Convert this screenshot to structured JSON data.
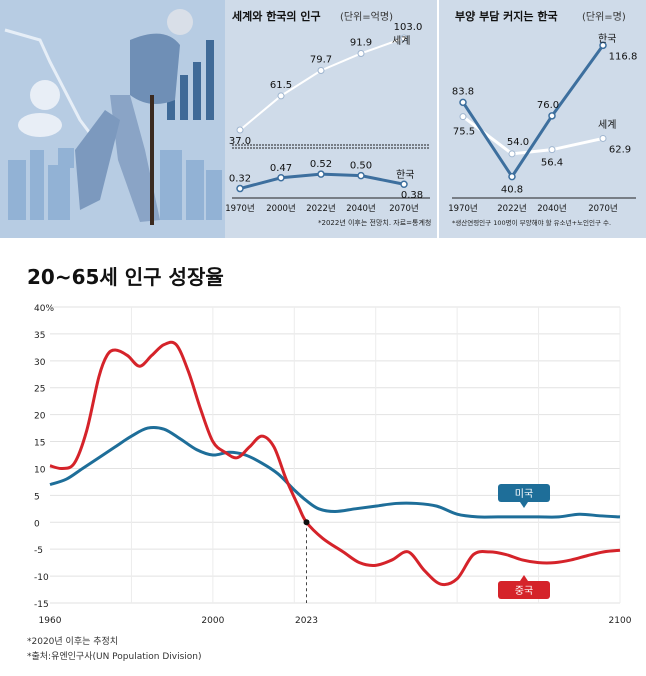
{
  "chart_data": [
    {
      "type": "line",
      "title": "세계와 한국의 인구",
      "unit": "(단위=억명)",
      "categories": [
        "1970년",
        "2000년",
        "2022년",
        "2040년",
        "2070년"
      ],
      "series": [
        {
          "name": "세계",
          "values": [
            37.0,
            61.5,
            79.7,
            91.9,
            103.0
          ],
          "labels": [
            "37.0",
            "61.5",
            "79.7",
            "91.9",
            "103.0"
          ],
          "color": "#ffffff"
        },
        {
          "name": "한국",
          "values": [
            0.32,
            0.47,
            0.52,
            0.5,
            0.38
          ],
          "labels": [
            "0.32",
            "0.47",
            "0.52",
            "0.50",
            "0.38"
          ],
          "color": "#3d6f9e"
        }
      ],
      "note": "*2022년 이후는 전망치. 자료=통계청"
    },
    {
      "type": "line",
      "title": "부양 부담 커지는 한국",
      "unit": "(단위=명)",
      "categories": [
        "1970년",
        "2022년",
        "2040년",
        "2070년"
      ],
      "series": [
        {
          "name": "한국",
          "values": [
            83.8,
            40.8,
            76.0,
            116.8
          ],
          "labels": [
            "83.8",
            "40.8",
            "76.0",
            "116.8"
          ],
          "color": "#3d6f9e"
        },
        {
          "name": "세계",
          "values": [
            75.5,
            54.0,
            56.4,
            62.9
          ],
          "labels": [
            "75.5",
            "54.0",
            "56.4",
            "62.9"
          ],
          "color": "#ffffff"
        }
      ],
      "note": "*생산연령인구 100명이 부양해야 할 유소년+노인인구 수."
    },
    {
      "type": "line",
      "title": "20~65세 인구 성장율",
      "ylim": [
        -15,
        40
      ],
      "yticks": [
        "40%",
        "35",
        "30",
        "25",
        "20",
        "15",
        "10",
        "5",
        "0",
        "-5",
        "-10",
        "-15"
      ],
      "xlim": [
        1960,
        2100
      ],
      "xticks": [
        "1960",
        "2000",
        "2023",
        "2100"
      ],
      "series": [
        {
          "name": "미국",
          "color": "#1e6e99",
          "x": [
            1960,
            1964,
            1968,
            1972,
            1976,
            1980,
            1984,
            1988,
            1992,
            1996,
            2000,
            2004,
            2008,
            2012,
            2016,
            2020,
            2023,
            2026,
            2030,
            2035,
            2040,
            2045,
            2050,
            2055,
            2060,
            2065,
            2070,
            2075,
            2080,
            2085,
            2090,
            2095,
            2100
          ],
          "y": [
            7,
            8,
            10,
            12,
            14,
            16,
            17.5,
            17.3,
            15.5,
            13.5,
            12.5,
            13,
            12.5,
            11,
            9,
            6,
            4,
            2.5,
            2,
            2.5,
            3,
            3.5,
            3.5,
            3,
            1.5,
            1,
            1,
            1,
            1,
            1,
            1.5,
            1.2,
            1
          ]
        },
        {
          "name": "중국",
          "color": "#d5232a",
          "x": [
            1960,
            1963,
            1966,
            1969,
            1972,
            1974,
            1976,
            1979,
            1982,
            1985,
            1988,
            1991,
            1994,
            1997,
            2000,
            2003,
            2006,
            2009,
            2012,
            2015,
            2018,
            2021,
            2023,
            2027,
            2032,
            2036,
            2040,
            2044,
            2048,
            2052,
            2056,
            2060,
            2064,
            2068,
            2072,
            2076,
            2080,
            2084,
            2088,
            2092,
            2096,
            2100
          ],
          "y": [
            10.5,
            10,
            11,
            17,
            27,
            31,
            32,
            31,
            29,
            31,
            33,
            33,
            28,
            21,
            15,
            13,
            12,
            14,
            16,
            14,
            8,
            3,
            0,
            -3,
            -5.5,
            -7.5,
            -8,
            -7,
            -5.5,
            -9,
            -11.5,
            -10.5,
            -6,
            -5.5,
            -6,
            -7,
            -7.5,
            -7.5,
            -7,
            -6.2,
            -5.5,
            -5.2
          ]
        }
      ],
      "annotation": "2023"
    }
  ],
  "notes": [
    "*2020년 이후는 추정치",
    "*출처:유엔인구사(UN Population Division)"
  ]
}
